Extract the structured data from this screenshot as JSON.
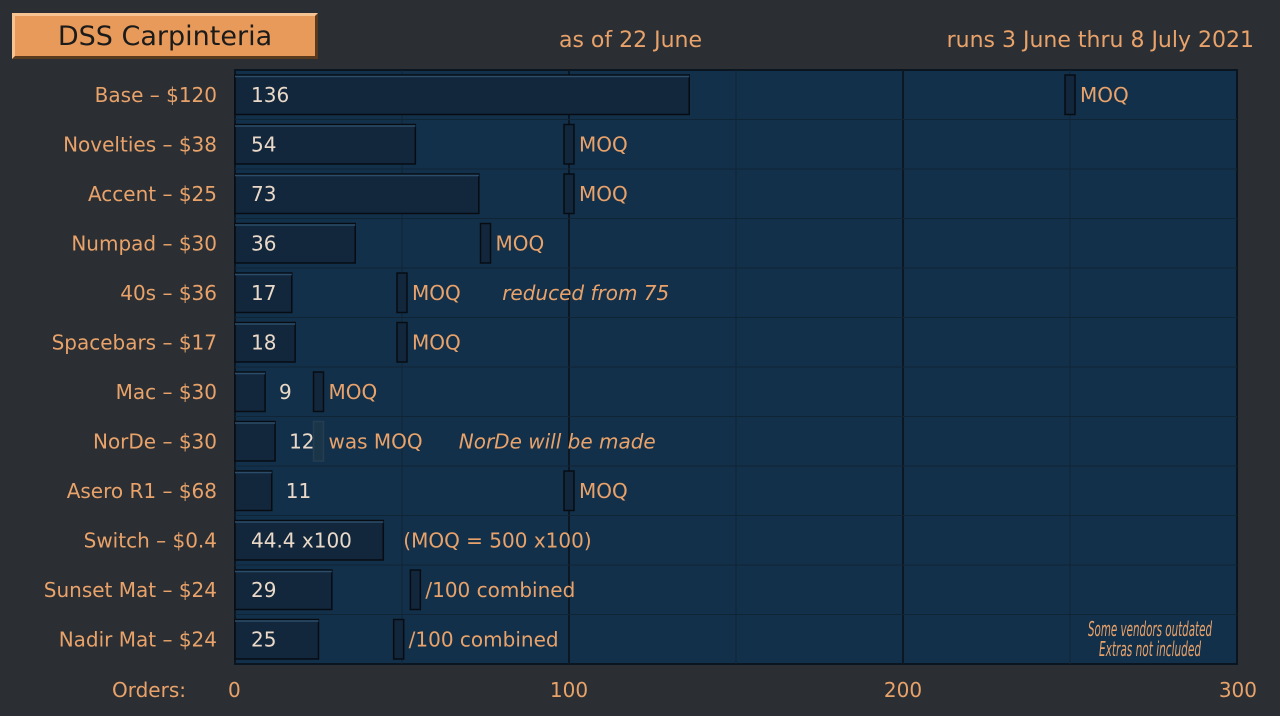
{
  "header": {
    "title": "DSS Carpinteria",
    "as_of": "as of 22 June",
    "runs": "runs 3 June thru 8 July 2021"
  },
  "colors": {
    "background": "#2b2f33",
    "plot_bg": "#13304a",
    "bar": "#12263c",
    "text_orange": "#e8a26a",
    "value_text": "#ead9c8",
    "gray_note": "#4d5c66"
  },
  "chart_data": {
    "type": "bar",
    "orientation": "horizontal",
    "x_axis_label": "Orders:",
    "xlim": [
      0,
      300
    ],
    "x_ticks": [
      0,
      100,
      200,
      300
    ],
    "grid": true,
    "categories": [
      "Base – $120",
      "Novelties – $38",
      "Accent – $25",
      "Numpad – $30",
      "40s – $36",
      "Spacebars – $17",
      "Mac – $30",
      "NorDe – $30",
      "Asero R1 – $68",
      "Switch – $0.4",
      "Sunset Mat – $24",
      "Nadir Mat – $24"
    ],
    "values": [
      136,
      54,
      73,
      36,
      17,
      18,
      9,
      12,
      11,
      44.4,
      29,
      25
    ],
    "value_labels": [
      "136",
      "54",
      "73",
      "36",
      "17",
      "18",
      "9",
      "12",
      "11",
      "44.4 x100",
      "29",
      "25"
    ],
    "moq": [
      250,
      100,
      100,
      75,
      50,
      50,
      25,
      25,
      100,
      null,
      54,
      49
    ],
    "moq_labels": [
      "MOQ",
      "MOQ",
      "MOQ",
      "MOQ",
      "MOQ",
      "MOQ",
      "MOQ",
      "was MOQ",
      "MOQ",
      "(MOQ = 500 x100)",
      "/100 combined",
      "/100 combined"
    ],
    "annotations": [
      {
        "row": 4,
        "text": "reduced from 75",
        "value": 80
      },
      {
        "row": 7,
        "text": "NorDe will be made",
        "value": 67
      }
    ],
    "footnote": [
      "Some vendors outdated",
      "Extras not included"
    ]
  }
}
